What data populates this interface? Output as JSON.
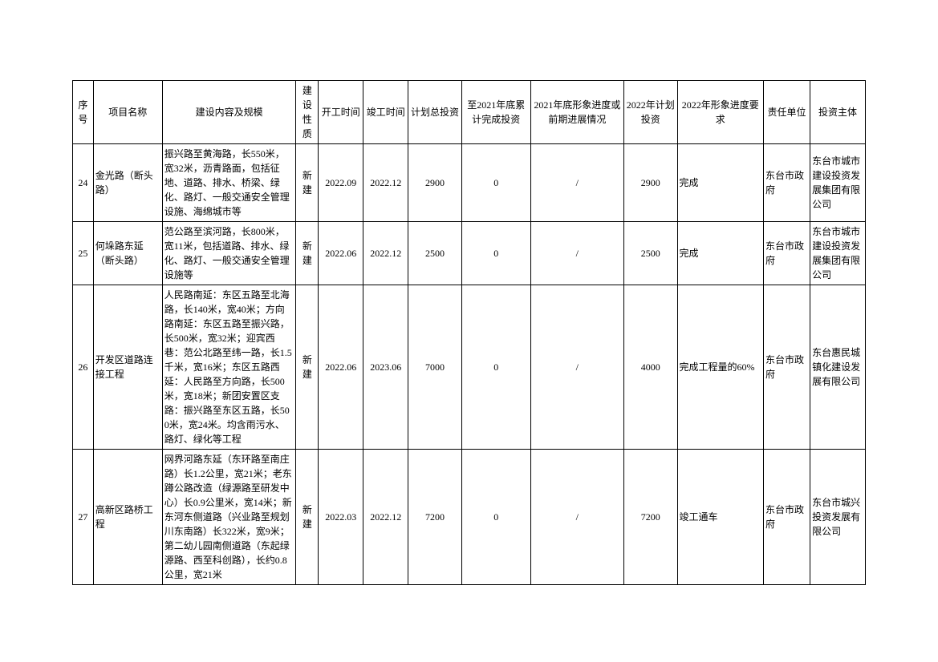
{
  "table": {
    "background_color": "#ffffff",
    "border_color": "#000000",
    "text_color": "#000000",
    "font_size": 12,
    "columns": [
      {
        "key": "seq",
        "label": "序号",
        "align": "center"
      },
      {
        "key": "name",
        "label": "项目名称",
        "align": "left"
      },
      {
        "key": "content",
        "label": "建设内容及规模",
        "align": "left"
      },
      {
        "key": "nature",
        "label": "建设性质",
        "align": "center"
      },
      {
        "key": "start",
        "label": "开工时间",
        "align": "center"
      },
      {
        "key": "end",
        "label": "竣工时间",
        "align": "center"
      },
      {
        "key": "total",
        "label": "计划总投资",
        "align": "center"
      },
      {
        "key": "cum",
        "label": "至2021年底累计完成投资",
        "align": "center"
      },
      {
        "key": "progress",
        "label": "2021年底形象进度或前期进展情况",
        "align": "center"
      },
      {
        "key": "plan",
        "label": "2022年计划投资",
        "align": "center"
      },
      {
        "key": "req",
        "label": "2022年形象进度要求",
        "align": "left"
      },
      {
        "key": "resp",
        "label": "责任单位",
        "align": "left"
      },
      {
        "key": "invest",
        "label": "投资主体",
        "align": "left"
      }
    ],
    "rows": [
      {
        "seq": "24",
        "name": "金光路（断头路）",
        "content": "振兴路至黄海路，长550米，宽32米，沥青路面，包括征地、道路、排水、桥梁、绿化、路灯、一般交通安全管理设施、海绵城市等",
        "nature": "新建",
        "start": "2022.09",
        "end": "2022.12",
        "total": "2900",
        "cum": "0",
        "progress": "/",
        "plan": "2900",
        "req": "完成",
        "resp": "东台市政府",
        "invest": "东台市城市建设投资发展集团有限公司"
      },
      {
        "seq": "25",
        "name": "何垛路东延（断头路）",
        "content": "范公路至滨河路，长800米，宽11米，包括道路、排水、绿化、路灯、一般交通安全管理设施等",
        "nature": "新建",
        "start": "2022.06",
        "end": "2022.12",
        "total": "2500",
        "cum": "0",
        "progress": "/",
        "plan": "2500",
        "req": "完成",
        "resp": "东台市政府",
        "invest": "东台市城市建设投资发展集团有限公司"
      },
      {
        "seq": "26",
        "name": "开发区道路连接工程",
        "content": "人民路南延：东区五路至北海路，长140米，宽40米；方向路南延：东区五路至振兴路，长500米，宽32米；迎宾西巷：范公北路至纬一路，长1.5千米，宽16米；东区五路西延：人民路至方向路，长500米，宽18米；新团安置区支路：振兴路至东区五路，长500米，宽24米。均含雨污水、路灯、绿化等工程",
        "nature": "新建",
        "start": "2022.06",
        "end": "2023.06",
        "total": "7000",
        "cum": "0",
        "progress": "/",
        "plan": "4000",
        "req": "完成工程量的60%",
        "resp": "东台市政府",
        "invest": "东台惠民城镇化建设发展有限公司"
      },
      {
        "seq": "27",
        "name": "高新区路桥工程",
        "content": "网界河路东延（东环路至南庄路）长1.2公里，宽21米；老东蹲公路改造（绿源路至研发中心）长0.9公里米，宽14米；新东河东侧道路（兴业路至规划川东南路）长322米，宽9米；第二幼儿园南侧道路（东起绿源路、西至科创路），长约0.8公里，宽21米",
        "nature": "新建",
        "start": "2022.03",
        "end": "2022.12",
        "total": "7200",
        "cum": "0",
        "progress": "/",
        "plan": "7200",
        "req": "竣工通车",
        "resp": "东台市政府",
        "invest": "东台市城兴投资发展有限公司"
      }
    ]
  }
}
